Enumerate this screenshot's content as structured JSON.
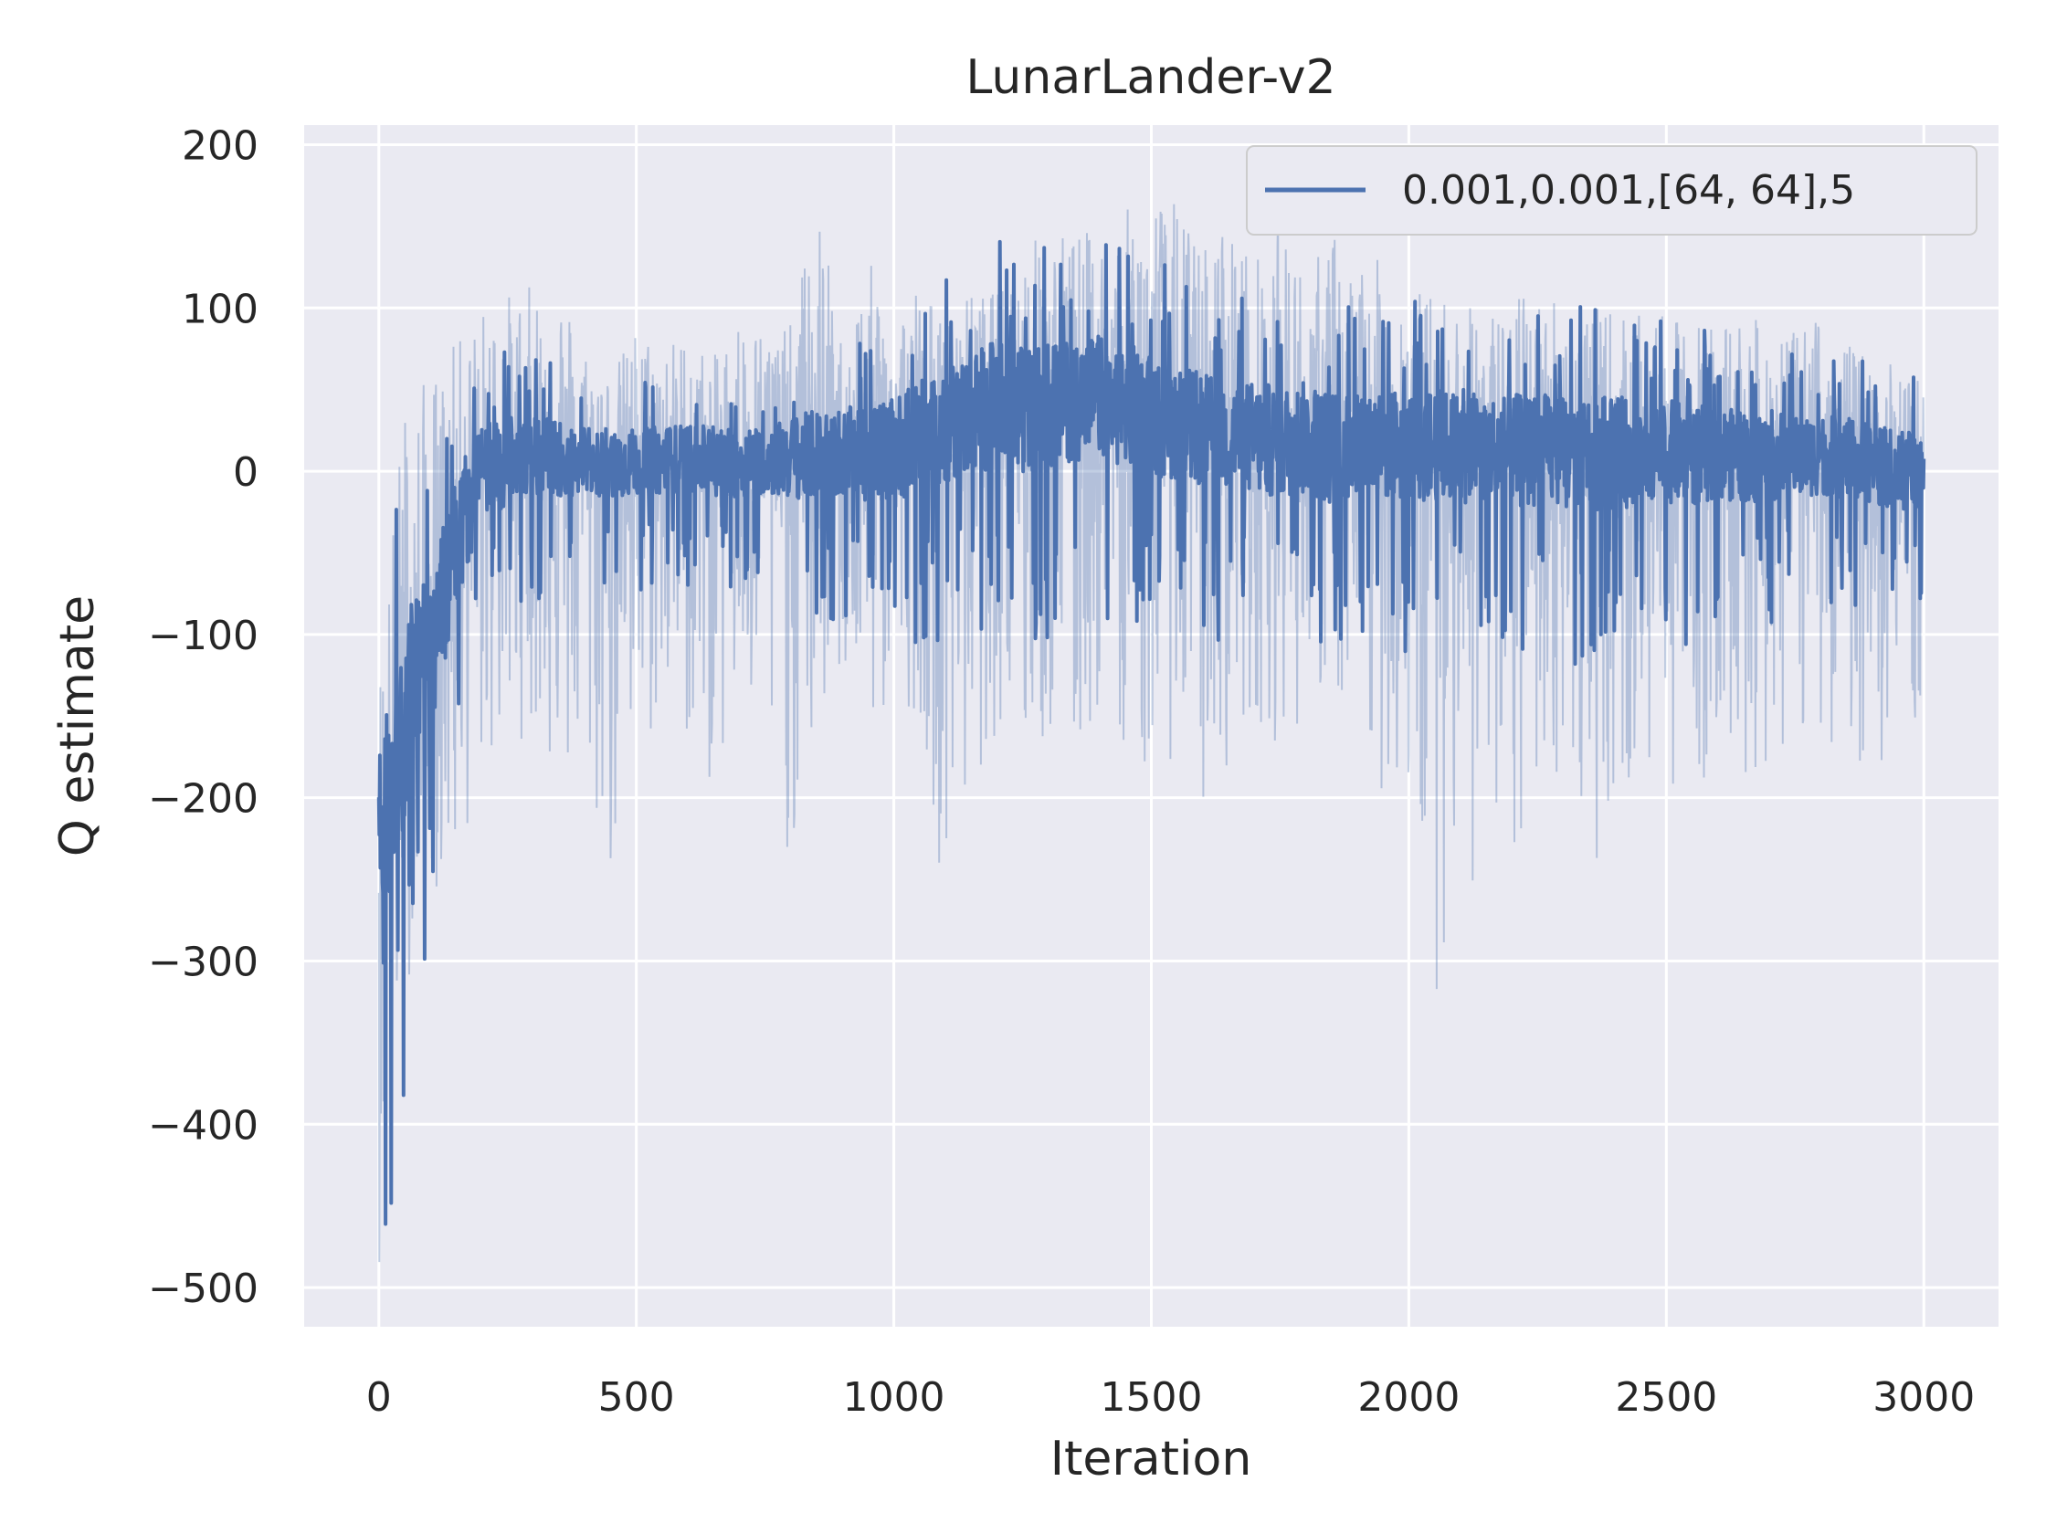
{
  "chart_data": {
    "type": "line",
    "title": "LunarLander-v2",
    "xlabel": "Iteration",
    "ylabel": "Q estimate",
    "xlim": [
      -145,
      3145
    ],
    "ylim": [
      -524,
      212
    ],
    "xticks": [
      0,
      500,
      1000,
      1500,
      2000,
      2500,
      3000
    ],
    "xtick_labels": [
      "0",
      "500",
      "1000",
      "1500",
      "2000",
      "2500",
      "3000"
    ],
    "yticks": [
      200,
      100,
      0,
      -100,
      -200,
      -300,
      -400,
      -500
    ],
    "ytick_labels": [
      "200",
      "100",
      "0",
      "−100",
      "−200",
      "−300",
      "−400",
      "−500"
    ],
    "grid": true,
    "legend_position": "top-right",
    "colors": {
      "series": "#4c72b0",
      "band": "#4c72b0",
      "plot_bg": "#eaeaf2",
      "grid": "#ffffff"
    },
    "series": [
      {
        "name": "0.001,0.001,[64, 64],5",
        "x_start": 0,
        "x_step": 50,
        "mean": [
          -240,
          -150,
          -110,
          -40,
          0,
          5,
          10,
          8,
          5,
          6,
          5,
          7,
          8,
          6,
          5,
          7,
          8,
          10,
          12,
          10,
          15,
          20,
          28,
          35,
          42,
          38,
          40,
          45,
          45,
          40,
          35,
          30,
          25,
          22,
          20,
          18,
          20,
          15,
          18,
          17,
          15,
          16,
          15,
          14,
          12,
          13,
          12,
          11,
          12,
          10,
          12,
          10,
          11,
          9,
          10,
          8,
          10,
          8,
          5,
          0,
          2
        ],
        "spread": [
          120,
          90,
          70,
          60,
          40,
          40,
          35,
          35,
          30,
          30,
          30,
          30,
          30,
          30,
          30,
          30,
          35,
          40,
          40,
          40,
          45,
          50,
          50,
          55,
          55,
          55,
          55,
          55,
          55,
          55,
          55,
          50,
          50,
          50,
          50,
          50,
          50,
          50,
          50,
          50,
          50,
          50,
          50,
          50,
          50,
          50,
          50,
          50,
          50,
          45,
          45,
          45,
          40,
          40,
          40,
          35,
          35,
          35,
          35,
          35,
          35
        ],
        "band_low": [
          -490,
          -320,
          -260,
          -250,
          -190,
          -170,
          -160,
          -200,
          -200,
          -260,
          -200,
          -150,
          -170,
          -200,
          -150,
          -180,
          -245,
          -170,
          -130,
          -170,
          -150,
          -145,
          -270,
          -200,
          -160,
          -200,
          -170,
          -200,
          -150,
          -170,
          -200,
          -170,
          -220,
          -180,
          -150,
          -170,
          -150,
          -130,
          -200,
          -200,
          -210,
          -325,
          -230,
          -290,
          -280,
          -200,
          -185,
          -250,
          -210,
          -200,
          -190,
          -200,
          -180,
          -190,
          -185,
          -170,
          -160,
          -180,
          -185,
          -180,
          -150
        ],
        "band_high": [
          -120,
          50,
          60,
          80,
          100,
          110,
          115,
          120,
          80,
          60,
          90,
          80,
          85,
          70,
          100,
          90,
          90,
          170,
          80,
          130,
          100,
          120,
          90,
          110,
          110,
          140,
          150,
          150,
          145,
          160,
          175,
          165,
          140,
          160,
          130,
          160,
          120,
          150,
          130,
          130,
          115,
          110,
          105,
          100,
          105,
          115,
          110,
          100,
          100,
          95,
          95,
          90,
          95,
          100,
          85,
          85,
          100,
          80,
          70,
          65,
          60
        ]
      }
    ]
  }
}
